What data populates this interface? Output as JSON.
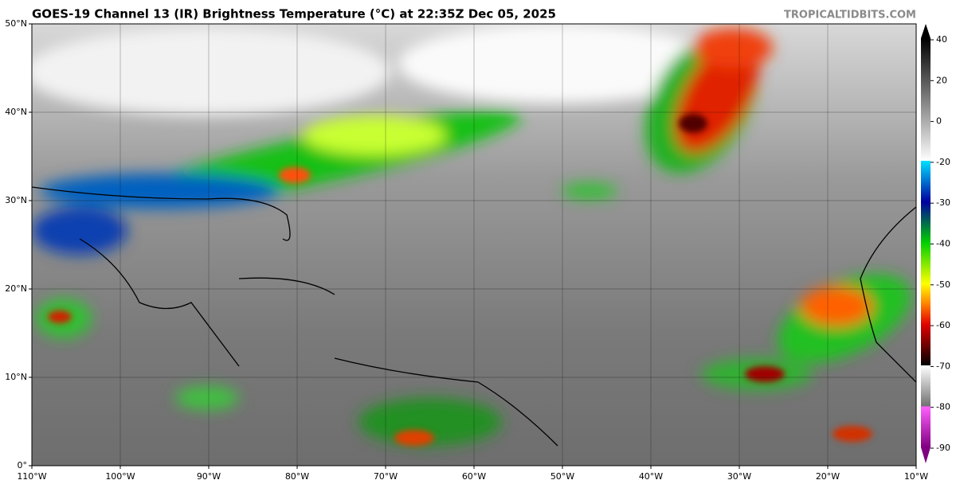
{
  "title": "GOES-19 Channel 13 (IR) Brightness Temperature (°C) at 22:35Z Dec 05, 2025",
  "watermark": "TROPICALTIDBITS.COM",
  "map": {
    "lon_range": [
      -110,
      -10
    ],
    "lat_range": [
      0,
      50
    ],
    "lon_ticks": [
      {
        "value": -110,
        "label": "110°W"
      },
      {
        "value": -100,
        "label": "100°W"
      },
      {
        "value": -90,
        "label": "90°W"
      },
      {
        "value": -80,
        "label": "80°W"
      },
      {
        "value": -70,
        "label": "70°W"
      },
      {
        "value": -60,
        "label": "60°W"
      },
      {
        "value": -50,
        "label": "50°W"
      },
      {
        "value": -40,
        "label": "40°W"
      },
      {
        "value": -30,
        "label": "30°W"
      },
      {
        "value": -20,
        "label": "20°W"
      },
      {
        "value": -10,
        "label": "10°W"
      }
    ],
    "lat_ticks": [
      {
        "value": 0,
        "label": "0°"
      },
      {
        "value": 10,
        "label": "10°N"
      },
      {
        "value": 20,
        "label": "20°N"
      },
      {
        "value": 30,
        "label": "30°N"
      },
      {
        "value": 40,
        "label": "40°N"
      },
      {
        "value": 50,
        "label": "50°N"
      }
    ]
  },
  "colorbar": {
    "ticks": [
      40,
      20,
      0,
      -20,
      -30,
      -40,
      -50,
      -60,
      -70,
      -80,
      -90
    ]
  }
}
